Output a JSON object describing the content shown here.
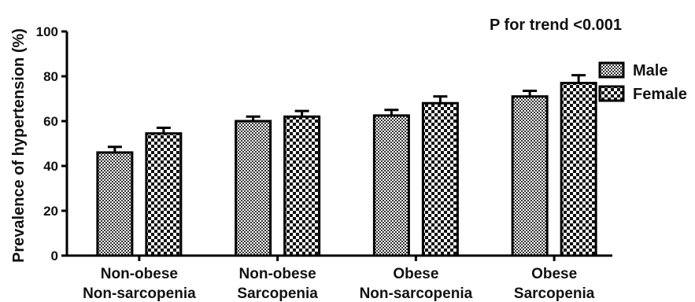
{
  "chart_data": {
    "type": "bar",
    "categories": [
      [
        "Non-obese",
        "Non-sarcopenia"
      ],
      [
        "Non-obese",
        "Sarcopenia"
      ],
      [
        "Obese",
        "Non-sarcopenia"
      ],
      [
        "Obese",
        "Sarcopenia"
      ]
    ],
    "series": [
      {
        "name": "Male",
        "values": [
          46,
          60,
          62.5,
          71
        ],
        "errors": [
          2.5,
          2,
          2.5,
          2.5
        ],
        "pattern": "fine"
      },
      {
        "name": "Female",
        "values": [
          54.5,
          62,
          68,
          77
        ],
        "errors": [
          2.5,
          2.5,
          3,
          3.5
        ],
        "pattern": "checker"
      }
    ],
    "ylabel": "Prevalence of hypertension (%)",
    "xlabel": "",
    "ylim": [
      0,
      100
    ],
    "yticks": [
      0,
      20,
      40,
      60,
      80,
      100
    ],
    "annotation": "P for trend <0.001",
    "legend_position": "right",
    "grid": false,
    "colors": {
      "bar_stroke": "#000000",
      "pattern_dark": "#222222",
      "pattern_light": "#ffffff"
    }
  }
}
